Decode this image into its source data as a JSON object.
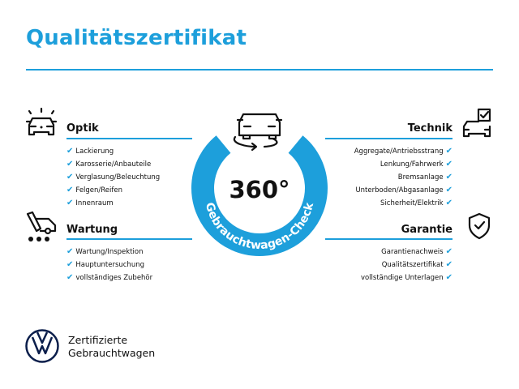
{
  "title": "Qualitätszertifikat",
  "colors": {
    "accent": "#1d9fdb",
    "text": "#111111"
  },
  "badge": {
    "number": "360°",
    "ring_text": "Gebrauchtwagen-Check",
    "icon": "car-rotate-icon"
  },
  "sections": {
    "optik": {
      "heading": "Optik",
      "icon": "car-lights-icon",
      "items": [
        "Lackierung",
        "Karosserie/Anbauteile",
        "Verglasung/Beleuchtung",
        "Felgen/Reifen",
        "Innenraum"
      ]
    },
    "wartung": {
      "heading": "Wartung",
      "icon": "service-van-icon",
      "items": [
        "Wartung/Inspektion",
        "Hauptuntersuchung",
        "vollständiges Zubehör"
      ]
    },
    "technik": {
      "heading": "Technik",
      "icon": "car-checklist-icon",
      "items": [
        "Aggregate/Antriebsstrang",
        "Lenkung/Fahrwerk",
        "Bremsanlage",
        "Unterboden/Abgasanlage",
        "Sicherheit/Elektrik"
      ]
    },
    "garantie": {
      "heading": "Garantie",
      "icon": "shield-check-icon",
      "items": [
        "Garantienachweis",
        "Qualitätszertifikat",
        "vollständige Unterlagen"
      ]
    }
  },
  "check_glyph": "✔",
  "brand": {
    "logo": "vw-logo",
    "line1": "Zertifizierte",
    "line2": "Gebrauchtwagen"
  }
}
